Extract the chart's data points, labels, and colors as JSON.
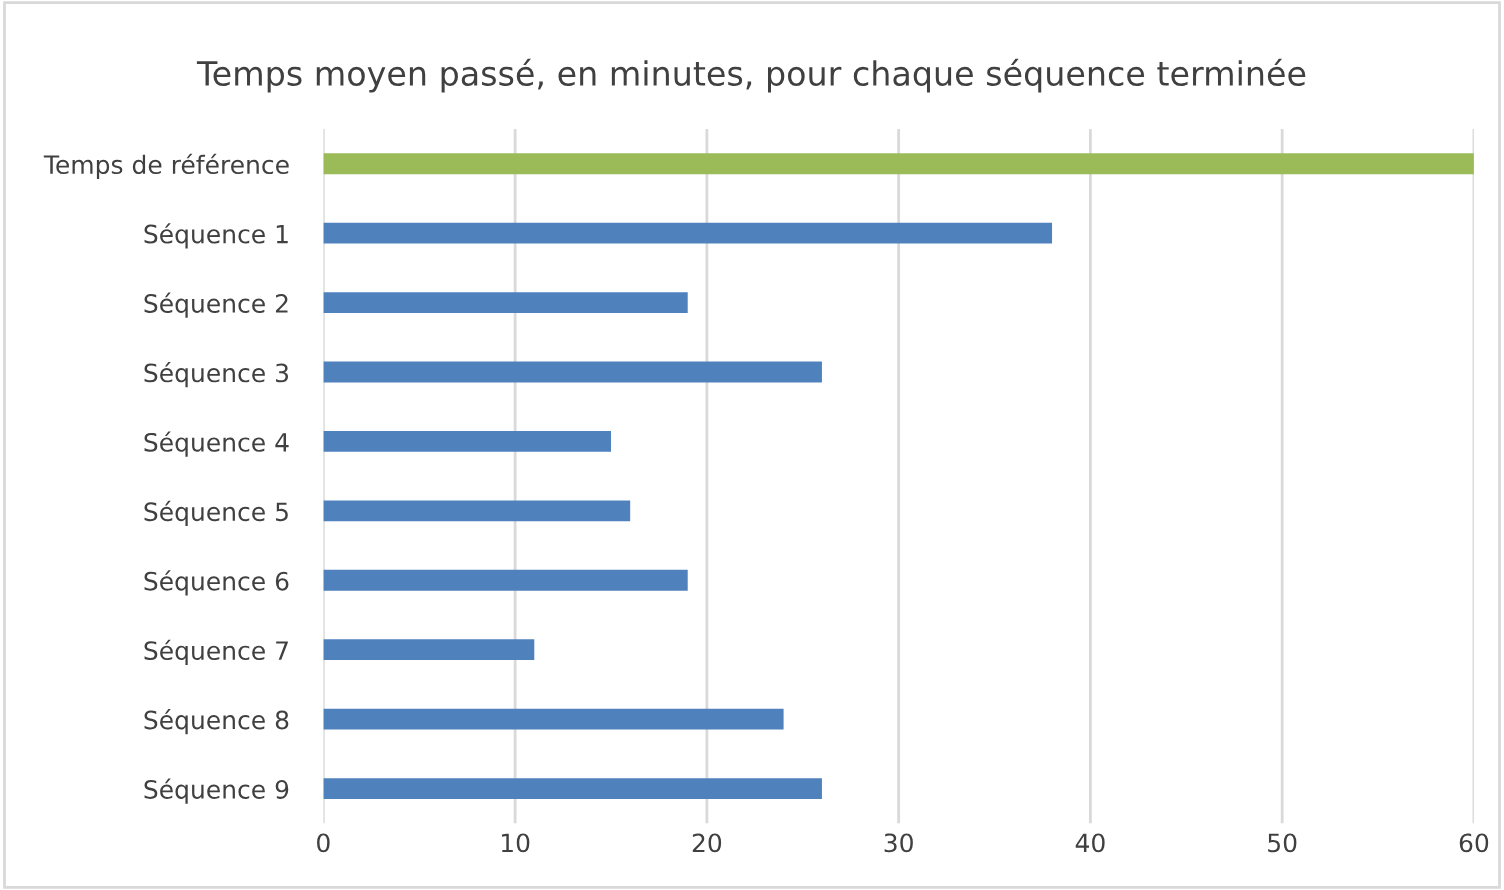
{
  "chart_data": {
    "type": "bar",
    "orientation": "horizontal",
    "title": "Temps moyen passé, en minutes, pour chaque séquence terminée",
    "categories": [
      "Temps de référence",
      "Séquence 1",
      "Séquence 2",
      "Séquence 3",
      "Séquence 4",
      "Séquence 5",
      "Séquence 6",
      "Séquence 7",
      "Séquence 8",
      "Séquence 9"
    ],
    "values": [
      60,
      38,
      19,
      26,
      15,
      16,
      19,
      11,
      24,
      26
    ],
    "colors": [
      "#9bbb59",
      "#4f81bd",
      "#4f81bd",
      "#4f81bd",
      "#4f81bd",
      "#4f81bd",
      "#4f81bd",
      "#4f81bd",
      "#4f81bd",
      "#4f81bd"
    ],
    "xlim": [
      0,
      60
    ],
    "xticks": [
      0,
      10,
      20,
      30,
      40,
      50,
      60
    ],
    "grid": "x"
  }
}
